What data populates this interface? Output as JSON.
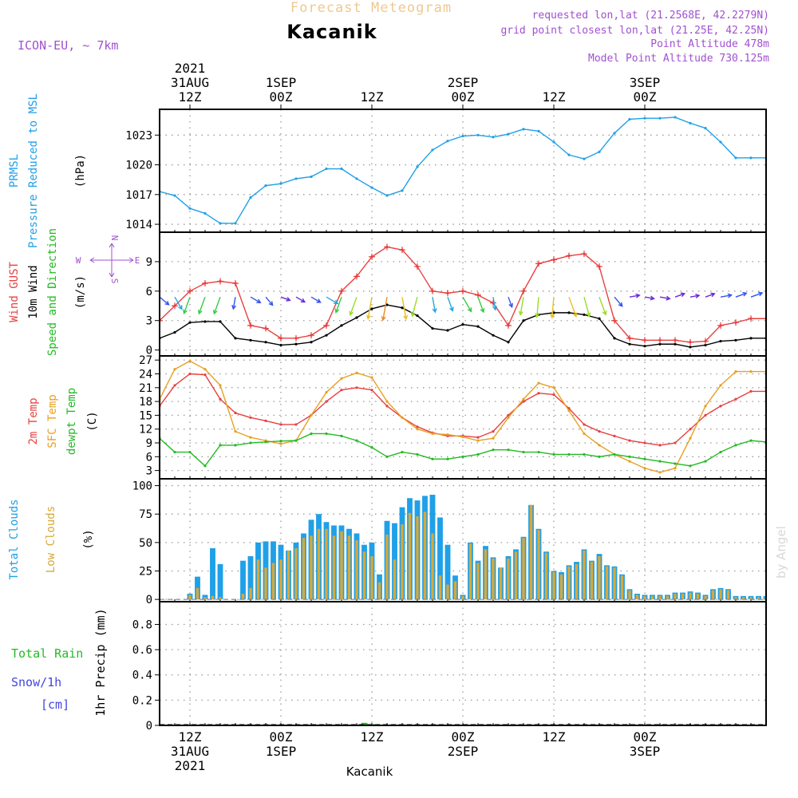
{
  "header": {
    "top_title": "Forecast Meteogram",
    "location": "Kacanik",
    "model": "ICON-EU, ~ 7km",
    "requested": "requested lon,lat (21.2568E, 42.2279N)",
    "grid_point": "grid point closest lon,lat (21.25E, 42.25N)",
    "point_alt": "Point Altitude 478m",
    "model_alt": "Model Point Altitude 730.125m",
    "watermark": "by Angel",
    "bottom_label": "Kacanik"
  },
  "time_axis": {
    "hours_start": 8,
    "hours_end": 88,
    "ticks_top": [
      {
        "hour": 12,
        "lines": [
          "2021",
          "31AUG",
          "12Z"
        ]
      },
      {
        "hour": 24,
        "lines": [
          "1SEP",
          "00Z"
        ]
      },
      {
        "hour": 36,
        "lines": [
          "12Z"
        ]
      },
      {
        "hour": 48,
        "lines": [
          "2SEP",
          "00Z"
        ]
      },
      {
        "hour": 60,
        "lines": [
          "12Z"
        ]
      },
      {
        "hour": 72,
        "lines": [
          "3SEP",
          "00Z"
        ]
      }
    ],
    "ticks_bottom": [
      {
        "hour": 12,
        "lines": [
          "12Z",
          "31AUG",
          "2021"
        ]
      },
      {
        "hour": 24,
        "lines": [
          "00Z",
          "1SEP"
        ]
      },
      {
        "hour": 36,
        "lines": [
          "12Z"
        ]
      },
      {
        "hour": 48,
        "lines": [
          "00Z",
          "2SEP"
        ]
      },
      {
        "hour": 60,
        "lines": [
          "12Z"
        ]
      },
      {
        "hour": 72,
        "lines": [
          "00Z",
          "3SEP"
        ]
      }
    ]
  },
  "panel_labels": {
    "pressure": [
      {
        "text": "PRMSL",
        "color": "#1fa0e8"
      },
      {
        "text": "Pressure Reduced to MSL",
        "color": "#1fa0e8"
      },
      {
        "text": "(hPa)",
        "color": "#000000"
      }
    ],
    "wind": [
      {
        "text": "Wind GUST",
        "color": "#e84040"
      },
      {
        "text": "10m Wind",
        "color": "#000000"
      },
      {
        "text": "Speed and Direction",
        "color": "#22bb22"
      },
      {
        "text": "(m/s)",
        "color": "#000000"
      }
    ],
    "wind_compass": {
      "n": "N",
      "s": "S",
      "w": "W",
      "e": "E"
    },
    "temp": [
      {
        "text": "2m Temp",
        "color": "#e84040"
      },
      {
        "text": "SFC Temp",
        "color": "#e8a020"
      },
      {
        "text": "dewpt Temp",
        "color": "#22bb22"
      },
      {
        "text": "(C)",
        "color": "#000000"
      }
    ],
    "cloud": [
      {
        "text": "Total Clouds",
        "color": "#1fa0e8"
      },
      {
        "text": "Low Clouds",
        "color": "#d8a838"
      },
      {
        "text": "(%)",
        "color": "#000000"
      }
    ],
    "precip_left": [
      {
        "text": "Total  Rain",
        "color": "#22bb22"
      },
      {
        "text": "Snow/1h",
        "color": "#4444dd"
      },
      {
        "text": "[cm]",
        "color": "#4444dd"
      }
    ],
    "precip_axis": "1hr Precip (mm)"
  },
  "colors": {
    "pressure": "#1fa0e8",
    "gust": "#e84040",
    "wind10m": "#000000",
    "t2m": "#e84040",
    "tsfc": "#e8a020",
    "dewpt": "#22bb22",
    "total_cloud": "#1fa0e8",
    "low_cloud": "#d8a838",
    "rain": "#22bb22",
    "grid": "#9a9a9a",
    "header_purple": "#a050d0",
    "top_title": "#f0c890"
  },
  "chart_data": [
    {
      "type": "line",
      "id": "pressure",
      "ylabel": "(hPa)",
      "yticks": [
        1014,
        1017,
        1020,
        1023
      ],
      "ylim": [
        1013.2,
        1025.6
      ],
      "grid": true,
      "x": [
        8,
        10,
        12,
        14,
        16,
        18,
        20,
        22,
        24,
        26,
        28,
        30,
        32,
        34,
        36,
        38,
        40,
        42,
        44,
        46,
        48,
        50,
        52,
        54,
        56,
        58,
        60,
        62,
        64,
        66,
        68,
        70,
        72,
        74,
        76,
        78,
        80,
        82,
        84,
        86,
        88
      ],
      "series": [
        {
          "values": [
            1017.3,
            1016.9,
            1015.6,
            1015.1,
            1014.1,
            1014.1,
            1016.7,
            1017.9,
            1018.1,
            1018.6,
            1018.8,
            1019.6,
            1019.6,
            1018.6,
            1017.7,
            1016.9,
            1017.4,
            1019.8,
            1021.5,
            1022.4,
            1022.9,
            1023.0,
            1022.8,
            1023.1,
            1023.6,
            1023.4,
            1022.3,
            1021.0,
            1020.6,
            1021.3,
            1023.2,
            1024.6,
            1024.7,
            1024.7,
            1024.8,
            1024.2,
            1023.7,
            1022.3,
            1020.7,
            1020.7,
            1020.7
          ]
        }
      ]
    },
    {
      "type": "line",
      "id": "wind",
      "ylabel": "(m/s)",
      "yticks": [
        0,
        3,
        6,
        9
      ],
      "ylim": [
        -0.6,
        12.0
      ],
      "grid": true,
      "x": [
        8,
        10,
        12,
        14,
        16,
        18,
        20,
        22,
        24,
        26,
        28,
        30,
        32,
        34,
        36,
        38,
        40,
        42,
        44,
        46,
        48,
        50,
        52,
        54,
        56,
        58,
        60,
        62,
        64,
        66,
        68,
        70,
        72,
        74,
        76,
        78,
        80,
        82,
        84,
        86,
        88
      ],
      "series": [
        {
          "name": "Wind GUST",
          "values": [
            3.0,
            4.5,
            6.0,
            6.8,
            7.0,
            6.8,
            2.5,
            2.2,
            1.2,
            1.2,
            1.5,
            2.5,
            6.0,
            7.5,
            9.5,
            10.5,
            10.2,
            8.5,
            6.0,
            5.8,
            6.0,
            5.6,
            4.8,
            2.5,
            6.0,
            8.8,
            9.2,
            9.6,
            9.8,
            8.5,
            3.0,
            1.2,
            1.0,
            1.0,
            1.0,
            0.8,
            0.9,
            2.5,
            2.8,
            3.2,
            3.2
          ]
        },
        {
          "name": "10m Wind",
          "values": [
            1.2,
            1.8,
            2.8,
            2.9,
            2.9,
            1.2,
            1.0,
            0.8,
            0.5,
            0.6,
            0.8,
            1.5,
            2.5,
            3.3,
            4.2,
            4.6,
            4.3,
            3.5,
            2.2,
            2.0,
            2.6,
            2.4,
            1.5,
            0.8,
            3.0,
            3.6,
            3.8,
            3.8,
            3.6,
            3.2,
            1.2,
            0.6,
            0.4,
            0.6,
            0.6,
            0.3,
            0.5,
            0.9,
            1.0,
            1.2,
            1.2
          ]
        }
      ],
      "wind_dirs": [
        310,
        330,
        20,
        20,
        20,
        10,
        300,
        320,
        290,
        300,
        300,
        300,
        20,
        20,
        10,
        10,
        350,
        15,
        350,
        340,
        330,
        340,
        350,
        340,
        10,
        5,
        5,
        340,
        345,
        340,
        320,
        260,
        280,
        280,
        250,
        260,
        250,
        260,
        250,
        250,
        260
      ]
    },
    {
      "type": "line",
      "id": "temp",
      "ylabel": "(C)",
      "yticks": [
        3,
        6,
        9,
        12,
        15,
        18,
        21,
        24,
        27
      ],
      "ylim": [
        1.2,
        27.9
      ],
      "grid": true,
      "x": [
        8,
        10,
        12,
        14,
        16,
        18,
        20,
        22,
        24,
        26,
        28,
        30,
        32,
        34,
        36,
        38,
        40,
        42,
        44,
        46,
        48,
        50,
        52,
        54,
        56,
        58,
        60,
        62,
        64,
        66,
        68,
        70,
        72,
        74,
        76,
        78,
        80,
        82,
        84,
        86,
        88
      ],
      "series": [
        {
          "name": "2m Temp",
          "values": [
            17,
            21.5,
            24,
            23.8,
            18.5,
            15.5,
            14.5,
            13.8,
            13.0,
            13.0,
            15.0,
            18.0,
            20.5,
            21.0,
            20.5,
            17.0,
            14.5,
            12.5,
            11.2,
            10.5,
            10.5,
            10.2,
            11.5,
            15.0,
            18.0,
            19.8,
            19.5,
            16.5,
            13.0,
            11.5,
            10.5,
            9.5,
            9.0,
            8.5,
            9.0,
            12.0,
            15.0,
            17.0,
            18.5,
            20.2,
            20.2
          ]
        },
        {
          "name": "SFC Temp",
          "values": [
            18.5,
            25.0,
            26.8,
            25.0,
            21.5,
            11.5,
            10.2,
            9.5,
            8.8,
            9.5,
            15.0,
            20.0,
            23.0,
            24.2,
            23.2,
            18.0,
            14.5,
            12.0,
            11.0,
            10.8,
            10.3,
            9.5,
            10.0,
            14.5,
            18.5,
            22.0,
            21.0,
            16.0,
            11.0,
            8.5,
            6.5,
            5.0,
            3.5,
            2.6,
            3.5,
            10.0,
            17.0,
            21.5,
            24.5,
            24.5,
            24.5
          ]
        },
        {
          "name": "dewpt Temp",
          "values": [
            10.0,
            7.0,
            7.0,
            4.0,
            8.5,
            8.5,
            9.0,
            9.2,
            9.4,
            9.5,
            11.0,
            11.0,
            10.5,
            9.5,
            8.0,
            6.0,
            7.0,
            6.5,
            5.5,
            5.5,
            6.0,
            6.5,
            7.5,
            7.5,
            7.0,
            7.0,
            6.5,
            6.5,
            6.5,
            6.0,
            6.5,
            6.0,
            5.5,
            5.0,
            4.5,
            4.0,
            5.0,
            7.0,
            8.5,
            9.5,
            9.2
          ]
        }
      ]
    },
    {
      "type": "bar",
      "id": "cloud",
      "ylabel": "(%)",
      "yticks": [
        0,
        25,
        50,
        75,
        100
      ],
      "ylim": [
        -2,
        106
      ],
      "grid": true,
      "x": [
        8,
        9,
        10,
        11,
        12,
        13,
        14,
        15,
        16,
        17,
        18,
        19,
        20,
        21,
        22,
        23,
        24,
        25,
        26,
        27,
        28,
        29,
        30,
        31,
        32,
        33,
        34,
        35,
        36,
        37,
        38,
        39,
        40,
        41,
        42,
        43,
        44,
        45,
        46,
        47,
        48,
        49,
        50,
        51,
        52,
        53,
        54,
        55,
        56,
        57,
        58,
        59,
        60,
        61,
        62,
        63,
        64,
        65,
        66,
        67,
        68,
        69,
        70,
        71,
        72,
        73,
        74,
        75,
        76,
        77,
        78,
        79,
        80,
        81,
        82,
        83,
        84,
        85,
        86,
        87,
        88
      ],
      "series": [
        {
          "name": "Total Clouds",
          "values": [
            0,
            0,
            0,
            0,
            5,
            20,
            4,
            45,
            31,
            0,
            0,
            34,
            38,
            50,
            51,
            51,
            48,
            43,
            50,
            58,
            70,
            75,
            68,
            65,
            65,
            62,
            58,
            48,
            50,
            22,
            69,
            67,
            81,
            89,
            87,
            91,
            92,
            72,
            48,
            21,
            4,
            50,
            34,
            47,
            37,
            28,
            38,
            44,
            55,
            83,
            62,
            42,
            25,
            24,
            30,
            33,
            44,
            34,
            40,
            30,
            29,
            22,
            9,
            5,
            4,
            4,
            4,
            4,
            6,
            6,
            7,
            6,
            4,
            9,
            10,
            9,
            3,
            3,
            3,
            3,
            3
          ]
        },
        {
          "name": "Low Clouds",
          "values": [
            0,
            0,
            0,
            0,
            4,
            10,
            2,
            3,
            2,
            0,
            0,
            5,
            10,
            35,
            28,
            32,
            35,
            43,
            45,
            54,
            56,
            62,
            62,
            56,
            60,
            56,
            52,
            42,
            38,
            15,
            57,
            35,
            66,
            76,
            73,
            77,
            58,
            21,
            13,
            16,
            3,
            49,
            32,
            44,
            36,
            28,
            36,
            42,
            54,
            83,
            61,
            41,
            24,
            22,
            29,
            31,
            43,
            33,
            38,
            29,
            28,
            21,
            8,
            4,
            3,
            3,
            3,
            3,
            5,
            5,
            6,
            5,
            3,
            8,
            9,
            8,
            2,
            2,
            2,
            2,
            2
          ]
        }
      ]
    },
    {
      "type": "bar",
      "id": "precip",
      "ylabel": "1hr Precip (mm)",
      "yticks": [
        0,
        0.2,
        0.4,
        0.6,
        0.8
      ],
      "ylim": [
        0,
        0.98
      ],
      "grid": true,
      "x": [
        35,
        36,
        45
      ],
      "series": [
        {
          "name": "Total Rain",
          "values": [
            0.02,
            0.01,
            0.005
          ]
        }
      ]
    }
  ]
}
